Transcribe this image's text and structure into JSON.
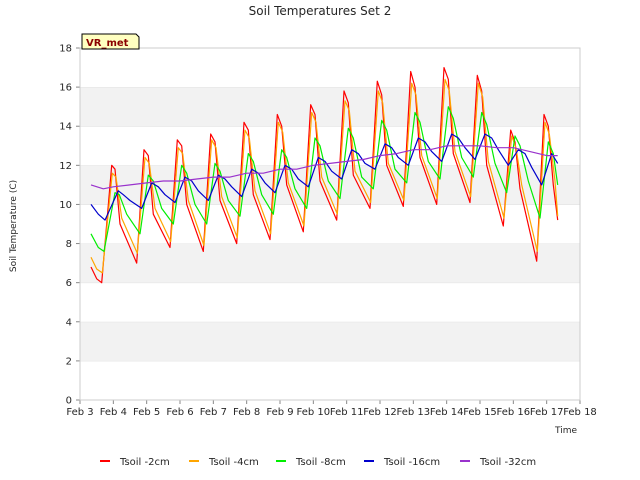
{
  "chart_data": {
    "type": "line",
    "title": "Soil Temperatures Set 2",
    "xlabel": "Time",
    "ylabel": "Soil Temperature (C)",
    "ylim": [
      0,
      18
    ],
    "yticks": [
      0,
      2,
      4,
      6,
      8,
      10,
      12,
      14,
      16,
      18
    ],
    "xlim": [
      "Feb 3",
      "Feb 18"
    ],
    "xticks": [
      "Feb 3",
      "Feb 4",
      "Feb 5",
      "Feb 6",
      "Feb 7",
      "Feb 8",
      "Feb 9",
      "Feb 10",
      "Feb 11",
      "Feb 12",
      "Feb 13",
      "Feb 14",
      "Feb 15",
      "Feb 16",
      "Feb 17",
      "Feb 18"
    ],
    "grid": "horizontal alternating bands",
    "legend_position": "bottom",
    "badge": "VR_met",
    "x_unit": "days in February",
    "series": [
      {
        "name": "Tsoil -2cm",
        "color": "#ff0000",
        "x": [
          3.33,
          3.5,
          3.65,
          3.95,
          4.05,
          4.2,
          4.7,
          4.92,
          5.05,
          5.2,
          5.7,
          5.92,
          6.05,
          6.2,
          6.7,
          6.92,
          7.05,
          7.2,
          7.7,
          7.92,
          8.05,
          8.2,
          8.7,
          8.92,
          9.05,
          9.2,
          9.7,
          9.92,
          10.05,
          10.2,
          10.7,
          10.92,
          11.05,
          11.2,
          11.7,
          11.92,
          12.05,
          12.2,
          12.7,
          12.92,
          13.05,
          13.2,
          13.7,
          13.92,
          14.05,
          14.2,
          14.7,
          14.92,
          15.05,
          15.2,
          15.7,
          15.92,
          16.05,
          16.2,
          16.7,
          16.92,
          17.05,
          17.2,
          17.33
        ],
        "y": [
          6.8,
          6.2,
          6.0,
          12.0,
          11.8,
          9.0,
          7.0,
          12.8,
          12.5,
          9.5,
          7.8,
          13.3,
          13.0,
          10.0,
          7.6,
          13.6,
          13.2,
          10.2,
          8.0,
          14.2,
          13.8,
          10.5,
          8.2,
          14.6,
          14.0,
          11.0,
          8.6,
          15.1,
          14.6,
          11.2,
          9.2,
          15.8,
          15.2,
          11.5,
          9.8,
          16.3,
          15.6,
          12.0,
          9.9,
          16.8,
          16.0,
          12.4,
          10.0,
          17.0,
          16.4,
          12.6,
          10.1,
          16.6,
          15.8,
          12.0,
          8.9,
          13.8,
          13.2,
          10.8,
          7.1,
          14.6,
          14.0,
          11.0,
          9.2
        ]
      },
      {
        "name": "Tsoil -4cm",
        "color": "#ffa500",
        "x": [
          3.33,
          3.5,
          3.67,
          3.97,
          4.08,
          4.25,
          4.72,
          4.95,
          5.08,
          5.25,
          5.72,
          5.95,
          6.08,
          6.25,
          6.72,
          6.95,
          7.08,
          7.25,
          7.72,
          7.95,
          8.08,
          8.25,
          8.72,
          8.95,
          9.08,
          9.25,
          9.72,
          9.95,
          10.08,
          10.25,
          10.72,
          10.95,
          11.08,
          11.25,
          11.72,
          11.95,
          12.08,
          12.25,
          12.72,
          12.95,
          13.08,
          13.25,
          13.72,
          13.95,
          14.08,
          14.25,
          14.72,
          14.95,
          15.08,
          15.25,
          15.72,
          15.95,
          16.08,
          16.25,
          16.72,
          16.95,
          17.08,
          17.25,
          17.33
        ],
        "y": [
          7.3,
          6.7,
          6.5,
          11.6,
          11.4,
          9.3,
          7.5,
          12.4,
          12.1,
          9.8,
          8.1,
          12.9,
          12.6,
          10.2,
          7.9,
          13.3,
          12.9,
          10.4,
          8.3,
          13.8,
          13.4,
          10.7,
          8.5,
          14.2,
          13.7,
          11.1,
          8.9,
          14.7,
          14.2,
          11.4,
          9.5,
          15.3,
          14.8,
          11.7,
          10.1,
          15.8,
          15.2,
          12.1,
          10.2,
          16.2,
          15.6,
          12.5,
          10.3,
          16.4,
          15.8,
          12.7,
          10.4,
          16.2,
          15.5,
          12.2,
          9.3,
          13.5,
          12.9,
          11.0,
          7.6,
          14.2,
          13.6,
          11.2,
          9.4
        ]
      },
      {
        "name": "Tsoil -8cm",
        "color": "#00ee00",
        "x": [
          3.33,
          3.55,
          3.72,
          4.05,
          4.18,
          4.4,
          4.8,
          5.05,
          5.2,
          5.45,
          5.8,
          6.05,
          6.2,
          6.45,
          6.8,
          7.05,
          7.2,
          7.45,
          7.8,
          8.05,
          8.2,
          8.45,
          8.8,
          9.05,
          9.2,
          9.45,
          9.8,
          10.05,
          10.2,
          10.45,
          10.8,
          11.05,
          11.2,
          11.45,
          11.8,
          12.05,
          12.2,
          12.45,
          12.8,
          13.05,
          13.2,
          13.45,
          13.8,
          14.05,
          14.2,
          14.45,
          14.8,
          15.05,
          15.2,
          15.45,
          15.8,
          16.05,
          16.2,
          16.45,
          16.8,
          17.05,
          17.2,
          17.33
        ],
        "y": [
          8.5,
          7.8,
          7.6,
          10.6,
          10.5,
          9.5,
          8.5,
          11.5,
          11.2,
          9.8,
          9.0,
          12.0,
          11.6,
          10.0,
          9.0,
          12.1,
          11.7,
          10.2,
          9.4,
          12.6,
          12.2,
          10.5,
          9.5,
          12.8,
          12.4,
          10.8,
          9.8,
          13.4,
          13.0,
          11.2,
          10.3,
          13.9,
          13.4,
          11.4,
          10.8,
          14.3,
          13.8,
          11.8,
          11.1,
          14.7,
          14.2,
          12.2,
          11.3,
          15.0,
          14.4,
          12.4,
          11.4,
          14.7,
          14.1,
          12.1,
          10.6,
          13.5,
          13.0,
          11.2,
          9.3,
          13.2,
          12.6,
          11.0
        ]
      },
      {
        "name": "Tsoil -16cm",
        "color": "#0000cc",
        "x": [
          3.33,
          3.55,
          3.75,
          4.15,
          4.3,
          4.5,
          4.85,
          5.15,
          5.35,
          5.55,
          5.85,
          6.15,
          6.35,
          6.55,
          6.85,
          7.15,
          7.35,
          7.55,
          7.85,
          8.15,
          8.35,
          8.55,
          8.85,
          9.15,
          9.35,
          9.55,
          9.85,
          10.15,
          10.35,
          10.55,
          10.85,
          11.15,
          11.35,
          11.55,
          11.85,
          12.15,
          12.35,
          12.55,
          12.85,
          13.15,
          13.35,
          13.55,
          13.85,
          14.15,
          14.35,
          14.55,
          14.85,
          15.15,
          15.35,
          15.55,
          15.85,
          16.15,
          16.35,
          16.55,
          16.85,
          17.15,
          17.33
        ],
        "y": [
          10.0,
          9.5,
          9.2,
          10.7,
          10.5,
          10.2,
          9.8,
          11.1,
          10.9,
          10.5,
          10.1,
          11.4,
          11.2,
          10.7,
          10.2,
          11.5,
          11.3,
          10.9,
          10.4,
          11.8,
          11.6,
          11.1,
          10.6,
          12.0,
          11.8,
          11.3,
          10.9,
          12.4,
          12.2,
          11.7,
          11.3,
          12.8,
          12.6,
          12.1,
          11.8,
          13.1,
          12.9,
          12.4,
          12.0,
          13.4,
          13.2,
          12.7,
          12.2,
          13.6,
          13.4,
          12.9,
          12.3,
          13.6,
          13.4,
          12.8,
          12.0,
          12.8,
          12.6,
          11.9,
          11.0,
          12.6,
          12.1
        ]
      },
      {
        "name": "Tsoil -32cm",
        "color": "#9932cc",
        "x": [
          3.33,
          3.7,
          4.0,
          4.5,
          5.0,
          5.5,
          6.0,
          6.5,
          7.0,
          7.5,
          8.0,
          8.5,
          9.0,
          9.5,
          10.0,
          10.5,
          11.0,
          11.5,
          12.0,
          12.5,
          13.0,
          13.5,
          14.0,
          14.5,
          15.0,
          15.5,
          16.0,
          16.5,
          17.0,
          17.33
        ],
        "y": [
          11.0,
          10.8,
          10.9,
          11.0,
          11.1,
          11.2,
          11.2,
          11.3,
          11.4,
          11.4,
          11.6,
          11.6,
          11.8,
          11.8,
          12.0,
          12.1,
          12.2,
          12.3,
          12.5,
          12.6,
          12.8,
          12.8,
          13.0,
          13.0,
          13.0,
          12.9,
          12.9,
          12.7,
          12.5,
          12.5
        ]
      }
    ]
  }
}
